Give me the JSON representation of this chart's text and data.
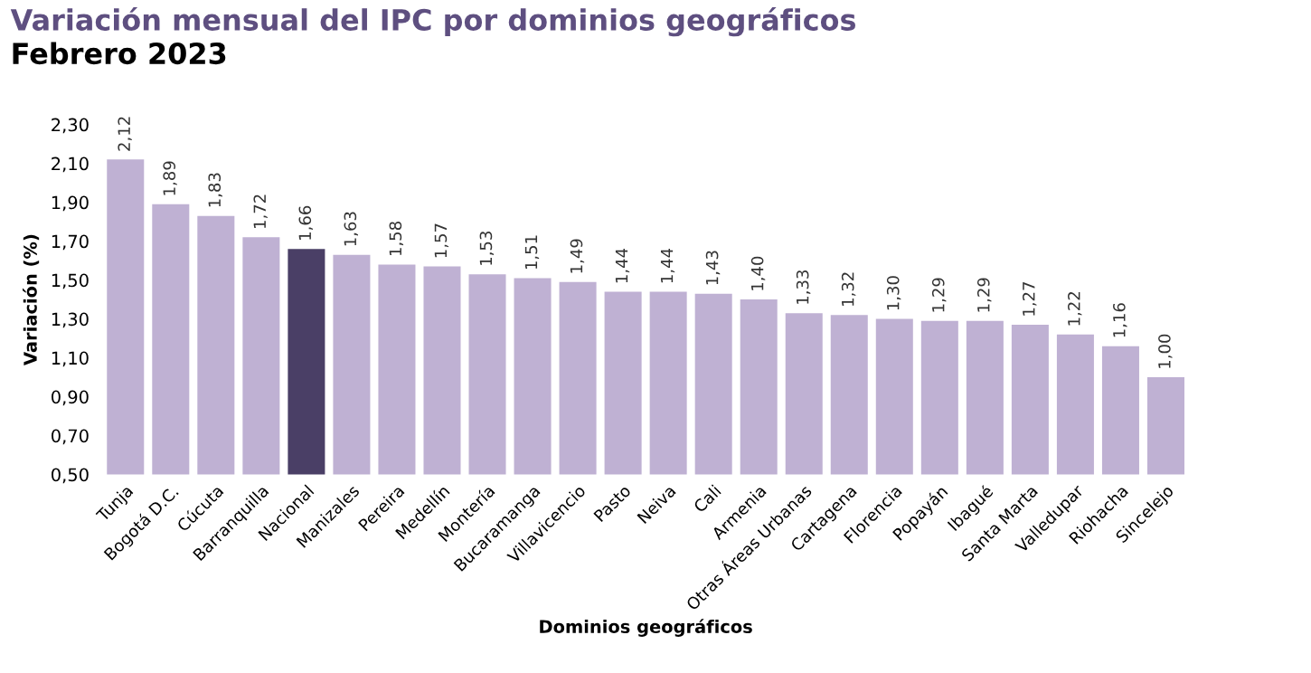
{
  "chart_data": {
    "type": "bar",
    "title": "Variación mensual del IPC por dominios geográficos",
    "subtitle": "Febrero 2023",
    "xlabel": "Dominios geográficos",
    "ylabel": "Variación (%)",
    "categories": [
      "Tunja",
      "Bogotá D.C.",
      "Cúcuta",
      "Barranquilla",
      "Nacional",
      "Manizales",
      "Pereira",
      "Medellín",
      "Montería",
      "Bucaramanga",
      "Villavicencio",
      "Pasto",
      "Neiva",
      "Cali",
      "Armenia",
      "Otras Áreas Urbanas",
      "Cartagena",
      "Florencia",
      "Popayán",
      "Ibagué",
      "Santa Marta",
      "Valledupar",
      "Riohacha",
      "Sincelejo"
    ],
    "values": [
      2.12,
      1.89,
      1.83,
      1.72,
      1.66,
      1.63,
      1.58,
      1.57,
      1.53,
      1.51,
      1.49,
      1.44,
      1.44,
      1.43,
      1.4,
      1.33,
      1.32,
      1.3,
      1.29,
      1.29,
      1.27,
      1.22,
      1.16,
      1.0
    ],
    "value_labels": [
      "2,12",
      "1,89",
      "1,83",
      "1,72",
      "1,66",
      "1,63",
      "1,58",
      "1,57",
      "1,53",
      "1,51",
      "1,49",
      "1,44",
      "1,44",
      "1,43",
      "1,40",
      "1,33",
      "1,32",
      "1,30",
      "1,29",
      "1,29",
      "1,27",
      "1,22",
      "1,16",
      "1,00"
    ],
    "colors": [
      "#bfb1d3",
      "#bfb1d3",
      "#bfb1d3",
      "#bfb1d3",
      "#4a3f66",
      "#bfb1d3",
      "#bfb1d3",
      "#bfb1d3",
      "#bfb1d3",
      "#bfb1d3",
      "#bfb1d3",
      "#bfb1d3",
      "#bfb1d3",
      "#bfb1d3",
      "#bfb1d3",
      "#bfb1d3",
      "#bfb1d3",
      "#bfb1d3",
      "#bfb1d3",
      "#bfb1d3",
      "#bfb1d3",
      "#bfb1d3",
      "#bfb1d3",
      "#bfb1d3"
    ],
    "ylim": [
      0.5,
      2.3
    ],
    "yticks": [
      {
        "value": 0.5,
        "label": "0,50"
      },
      {
        "value": 0.7,
        "label": "0,70"
      },
      {
        "value": 0.9,
        "label": "0,90"
      },
      {
        "value": 1.1,
        "label": "1,10"
      },
      {
        "value": 1.3,
        "label": "1,30"
      },
      {
        "value": 1.5,
        "label": "1,50"
      },
      {
        "value": 1.7,
        "label": "1,70"
      },
      {
        "value": 1.9,
        "label": "1,90"
      },
      {
        "value": 2.1,
        "label": "2,10"
      },
      {
        "value": 2.3,
        "label": "2,30"
      }
    ],
    "grid": false,
    "legend": false
  }
}
